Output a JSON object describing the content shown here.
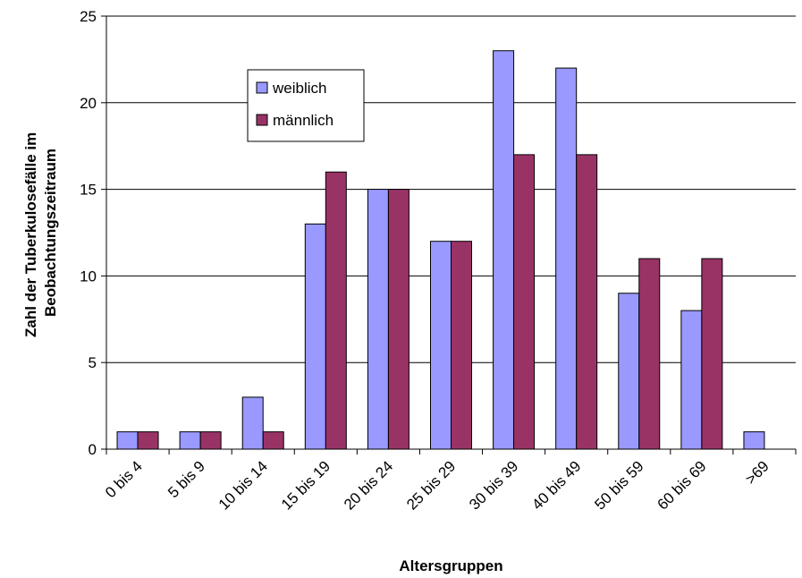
{
  "chart_data": {
    "type": "bar",
    "categories": [
      "0 bis 4",
      "5 bis 9",
      "10 bis 14",
      "15 bis 19",
      "20 bis 24",
      "25 bis 29",
      "30 bis 39",
      "40 bis 49",
      "50 bis 59",
      "60 bis 69",
      ">69"
    ],
    "series": [
      {
        "name": "weiblich",
        "color": "#9999ff",
        "values": [
          1,
          1,
          3,
          13,
          15,
          12,
          23,
          22,
          9,
          8,
          1
        ]
      },
      {
        "name": "männlich",
        "color": "#993366",
        "values": [
          1,
          1,
          1,
          16,
          15,
          12,
          17,
          17,
          11,
          11,
          0
        ]
      }
    ],
    "xlabel": "Altersgruppen",
    "ylabel_lines": [
      "Zahl der Tuberkulosefälle im",
      "Beobachtungszeitraum"
    ],
    "ylim": [
      0,
      25
    ],
    "yticks": [
      0,
      5,
      10,
      15,
      20,
      25
    ],
    "grid": true,
    "legend_position": "upper-left-inside"
  }
}
